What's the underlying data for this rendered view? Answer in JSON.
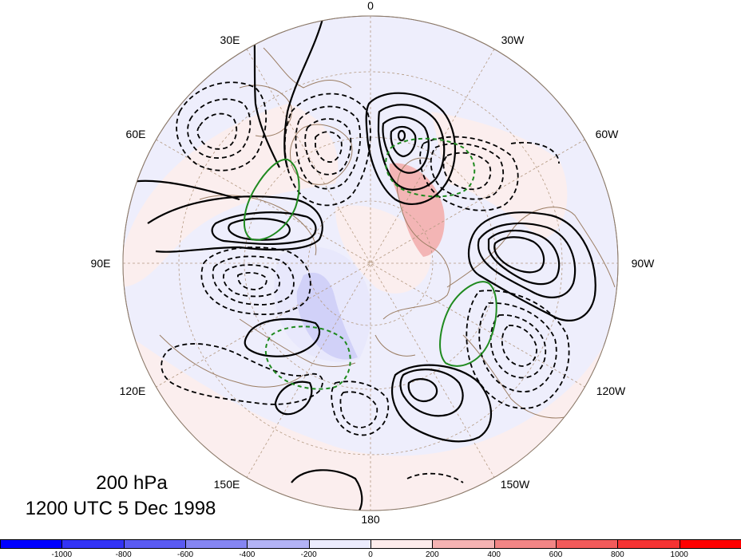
{
  "map": {
    "projection": "north-polar-stereographic",
    "longitude_labels": [
      {
        "text": "0",
        "lon": 0
      },
      {
        "text": "30W",
        "lon": -30
      },
      {
        "text": "60W",
        "lon": -60
      },
      {
        "text": "90W",
        "lon": -90
      },
      {
        "text": "120W",
        "lon": -120
      },
      {
        "text": "150W",
        "lon": -150
      },
      {
        "text": "180",
        "lon": 180
      },
      {
        "text": "150E",
        "lon": 150
      },
      {
        "text": "120E",
        "lon": 120
      },
      {
        "text": "90E",
        "lon": 90
      },
      {
        "text": "60E",
        "lon": 60
      },
      {
        "text": "30E",
        "lon": 30
      }
    ],
    "fields": {
      "shading": "red-positive / blue-negative anomaly",
      "black_contours": "solid positive, dashed negative",
      "green_contours": "solid positive, dashed negative"
    }
  },
  "caption": {
    "level": "200 hPa",
    "time": "1200 UTC 5 Dec 1998"
  },
  "colorbar": {
    "tick_labels": [
      "-1000",
      "-800",
      "-600",
      "-400",
      "-200",
      "0",
      "200",
      "400",
      "600",
      "800",
      "1000"
    ],
    "colors": [
      "#0000ff",
      "#3333f5",
      "#5a5af2",
      "#8585f2",
      "#b3b3f5",
      "#ececfd",
      "#fdecec",
      "#f5b3b3",
      "#f28585",
      "#f25a5a",
      "#f53333",
      "#ff0000"
    ]
  }
}
